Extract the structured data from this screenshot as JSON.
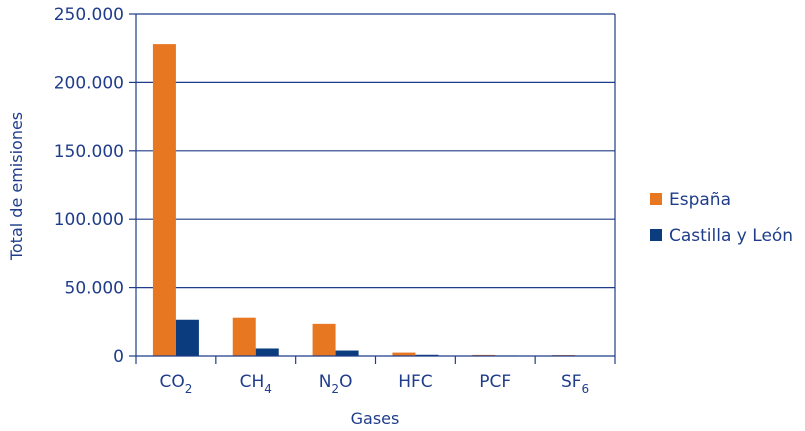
{
  "chart_data": {
    "type": "bar",
    "title": "",
    "xlabel": "Gases",
    "ylabel": "Total de emisiones",
    "categories": [
      "CO2",
      "CH4",
      "N2O",
      "HFC",
      "PCF",
      "SF6"
    ],
    "category_labels": [
      {
        "base": "CO",
        "sub": "2"
      },
      {
        "base": "CH",
        "sub": "4"
      },
      {
        "base": "N",
        "sub": "2",
        "tail": "O"
      },
      {
        "base": "HFC",
        "sub": ""
      },
      {
        "base": "PCF",
        "sub": ""
      },
      {
        "base": "SF",
        "sub": "6"
      }
    ],
    "series": [
      {
        "name": "España",
        "color": "#e87722",
        "values": [
          228000,
          28000,
          23500,
          2500,
          800,
          700
        ]
      },
      {
        "name": "Castilla y León",
        "color": "#0b3c7d",
        "values": [
          26500,
          5500,
          4000,
          900,
          400,
          300
        ]
      }
    ],
    "ylim": [
      0,
      250000
    ],
    "yticks": [
      "0",
      "50.000",
      "100.000",
      "150.000",
      "200.000",
      "250.000"
    ],
    "ytick_values": [
      0,
      50000,
      100000,
      150000,
      200000,
      250000
    ],
    "grid": true,
    "legend": "right",
    "axis_color": "#1f3d8a"
  }
}
